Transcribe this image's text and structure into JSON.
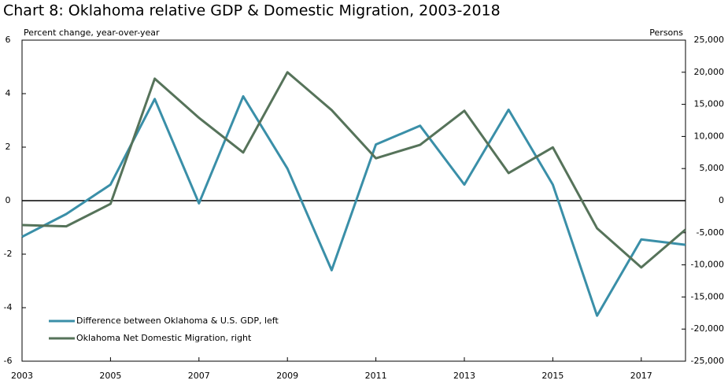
{
  "chart_data": {
    "type": "line",
    "title": "Chart 8: Oklahoma relative GDP & Domestic Migration, 2003-2018",
    "ylabel": "Percent change, year-over-year",
    "y2label": "Persons",
    "x": [
      2003,
      2004,
      2005,
      2006,
      2007,
      2008,
      2009,
      2010,
      2011,
      2012,
      2013,
      2014,
      2015,
      2016,
      2017,
      2018
    ],
    "xlim": [
      2003,
      2018
    ],
    "xticks": [
      2003,
      2005,
      2007,
      2009,
      2011,
      2013,
      2015,
      2017
    ],
    "ylim": [
      -6,
      6
    ],
    "yticks": [
      -6,
      -4,
      -2,
      0,
      2,
      4,
      6
    ],
    "y2lim": [
      -25000,
      25000
    ],
    "y2ticks": [
      {
        "value": -25000,
        "label": "-25,000"
      },
      {
        "value": -20000,
        "label": "-20,000"
      },
      {
        "value": -15000,
        "label": "-15,000"
      },
      {
        "value": -10000,
        "label": "-10,000"
      },
      {
        "value": -5000,
        "label": "-5,000"
      },
      0,
      {
        "value": 5000,
        "label": "5,000"
      },
      {
        "value": 10000,
        "label": "10,000"
      },
      {
        "value": 15000,
        "label": "15,000"
      },
      {
        "value": 20000,
        "label": "20,000"
      },
      {
        "value": 25000,
        "label": "25,000"
      }
    ],
    "legend": "lower left",
    "series": [
      {
        "name": "Difference between Oklahoma & U.S. GDP, left",
        "color": "#3a8fa8",
        "values": [
          -1.35,
          -0.5,
          0.6,
          3.8,
          -0.1,
          3.9,
          1.2,
          -2.6,
          2.1,
          2.8,
          0.6,
          3.4,
          0.6,
          -4.3,
          -1.45,
          -1.65
        ]
      },
      {
        "name": "Oklahoma Net Domestic Migration, right",
        "color": "#56735a",
        "axis": "y2",
        "values": [
          -3800,
          -4000,
          -500,
          19000,
          12900,
          7500,
          20000,
          14100,
          6600,
          8700,
          14000,
          4300,
          8300,
          -4300,
          -10400,
          -4500
        ]
      }
    ]
  }
}
